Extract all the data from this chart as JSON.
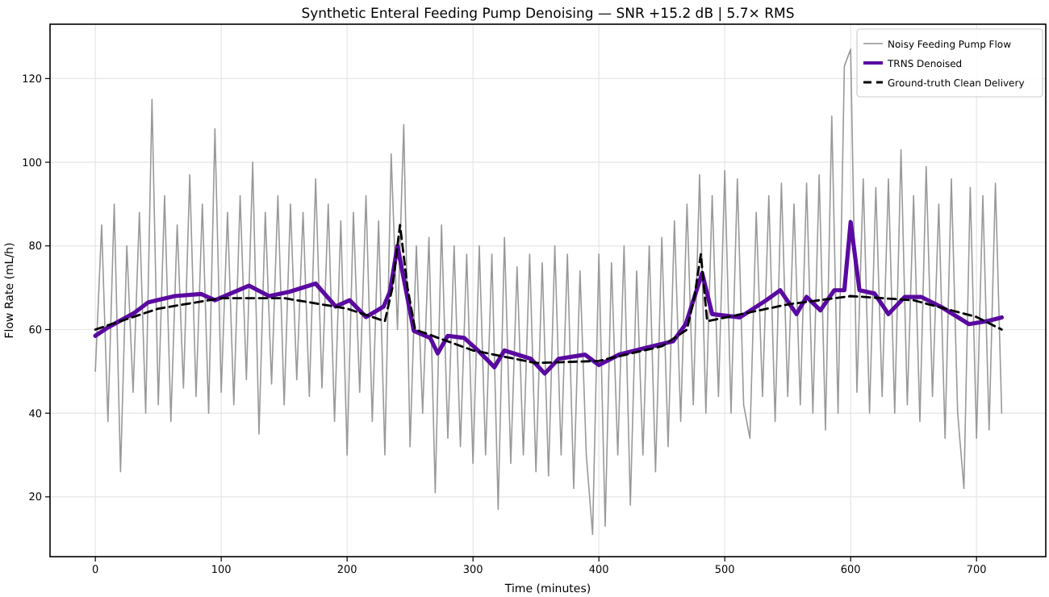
{
  "chart_data": {
    "type": "line",
    "title": "Synthetic Enteral Feeding Pump Denoising — SNR +15.2 dB | 5.7× RMS",
    "xlabel": "Time (minutes)",
    "ylabel": "Flow Rate (mL/h)",
    "xlim": [
      -36,
      755
    ],
    "ylim": [
      5.7,
      133
    ],
    "xticks": [
      0,
      100,
      200,
      300,
      400,
      500,
      600,
      700
    ],
    "yticks": [
      20,
      40,
      60,
      80,
      100,
      120
    ],
    "grid": true,
    "legend": "top right",
    "marker": "none",
    "series": [
      {
        "name": "Noisy Feeding Pump Flow",
        "color": "#999999",
        "line_style": "solid",
        "x": [
          0,
          5,
          10,
          15,
          20,
          25,
          30,
          35,
          40,
          45,
          50,
          55,
          60,
          65,
          70,
          75,
          80,
          85,
          90,
          95,
          100,
          105,
          110,
          115,
          120,
          125,
          130,
          135,
          140,
          145,
          150,
          155,
          160,
          165,
          170,
          175,
          180,
          185,
          190,
          195,
          200,
          205,
          210,
          215,
          220,
          225,
          230,
          235,
          240,
          245,
          250,
          255,
          260,
          265,
          270,
          275,
          280,
          285,
          290,
          295,
          300,
          305,
          310,
          315,
          320,
          325,
          330,
          335,
          340,
          345,
          350,
          355,
          360,
          365,
          370,
          375,
          380,
          385,
          390,
          395,
          400,
          405,
          410,
          415,
          420,
          425,
          430,
          435,
          440,
          445,
          450,
          455,
          460,
          465,
          470,
          475,
          480,
          485,
          490,
          495,
          500,
          505,
          510,
          515,
          520,
          525,
          530,
          535,
          540,
          545,
          550,
          555,
          560,
          565,
          570,
          575,
          580,
          585,
          590,
          595,
          600,
          605,
          610,
          615,
          620,
          625,
          630,
          635,
          640,
          645,
          650,
          655,
          660,
          665,
          670,
          675,
          680,
          685,
          690,
          695,
          700,
          705,
          710,
          715,
          720
        ],
        "values": [
          50,
          85,
          38,
          90,
          26,
          80,
          45,
          88,
          40,
          115,
          42,
          92,
          38,
          85,
          46,
          97,
          44,
          90,
          40,
          108,
          45,
          88,
          42,
          92,
          48,
          100,
          35,
          88,
          47,
          92,
          42,
          90,
          48,
          88,
          44,
          96,
          46,
          90,
          38,
          86,
          30,
          88,
          45,
          92,
          38,
          86,
          30,
          102,
          60,
          109,
          32,
          80,
          40,
          82,
          21,
          85,
          34,
          80,
          32,
          78,
          28,
          80,
          30,
          78,
          17,
          82,
          28,
          75,
          30,
          78,
          26,
          76,
          25,
          80,
          30,
          78,
          22,
          74,
          30,
          11,
          78,
          13,
          76,
          30,
          80,
          18,
          74,
          30,
          80,
          26,
          82,
          32,
          86,
          38,
          90,
          42,
          97,
          40,
          92,
          44,
          98,
          40,
          96,
          42,
          34,
          88,
          44,
          92,
          38,
          95,
          44,
          90,
          42,
          95,
          40,
          97,
          36,
          111,
          40,
          123,
          127,
          45,
          96,
          40,
          94,
          44,
          96,
          40,
          103,
          42,
          92,
          38,
          99,
          44,
          90,
          34,
          96,
          40,
          22,
          94,
          34,
          92,
          36,
          95,
          40
        ]
      },
      {
        "name": "TRNS Denoised",
        "color": "#5a0aa0",
        "line_style": "solid",
        "x": [
          0,
          10,
          31,
          42,
          63,
          84,
          95,
          122,
          138,
          154,
          175,
          191,
          202,
          215,
          229,
          234,
          240,
          247,
          253,
          266,
          272,
          280,
          293,
          304,
          317,
          325,
          346,
          357,
          368,
          389,
          400,
          416,
          437,
          459,
          469,
          482,
          490,
          512,
          533,
          544,
          557,
          565,
          576,
          587,
          595,
          600,
          607,
          619,
          630,
          643,
          656,
          672,
          694,
          710,
          720
        ],
        "values": [
          58.5,
          60.5,
          64,
          66.5,
          68,
          68.5,
          67,
          70.5,
          68,
          69,
          71,
          65.5,
          67,
          63,
          65.5,
          69,
          80,
          69,
          59.7,
          58,
          54.3,
          58.5,
          58,
          55,
          51,
          55,
          53,
          49.5,
          53,
          54,
          51.5,
          54,
          55.6,
          57.2,
          61.3,
          73.5,
          63.7,
          62.9,
          67,
          69.4,
          63.7,
          67.8,
          64.6,
          69.4,
          69.4,
          85.7,
          69.4,
          68.6,
          63.7,
          67.8,
          67.8,
          65.4,
          61.3,
          62.1,
          62.9
        ]
      },
      {
        "name": "Ground-truth Clean Delivery",
        "color": "#000000",
        "line_style": "dashed",
        "x": [
          0,
          50,
          100,
          150,
          200,
          230,
          236,
          242,
          248,
          254,
          300,
          350,
          400,
          450,
          470,
          476,
          481,
          486,
          550,
          600,
          650,
          700,
          720
        ],
        "values": [
          60,
          65,
          67.5,
          67.5,
          65,
          62,
          70,
          85,
          70,
          60,
          55,
          52,
          52.5,
          56,
          60,
          68,
          78,
          62,
          66,
          68,
          67,
          63,
          60
        ]
      }
    ]
  }
}
